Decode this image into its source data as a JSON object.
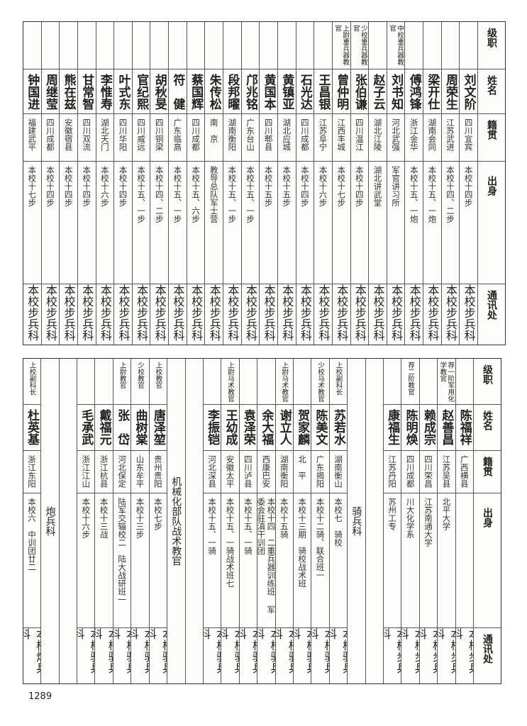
{
  "headers": [
    "级职",
    "姓名",
    "籍贯",
    "出身",
    "通讯处"
  ],
  "upper_table": {
    "rows": [
      {
        "rank": "",
        "name": "刘文阶",
        "place": "四川宜宾",
        "origin": "本校十四步",
        "address": "本校步兵科"
      },
      {
        "rank": "",
        "name": "周荣生",
        "place": "江苏武进",
        "origin": "本校十四、二步",
        "address": "本校步兵科"
      },
      {
        "rank": "",
        "name": "梁开仕",
        "place": "湖南会同",
        "origin": "本校十五、一炮",
        "address": "本校步兵科"
      },
      {
        "rank": "",
        "name": "傅鸿锋",
        "place": "浙江金华",
        "origin": "本校十五、一炮",
        "address": "本校步兵科"
      },
      {
        "rank": "中校重兵器教官",
        "name": "刘书知",
        "place": "河北武强",
        "origin": "军官讲习所",
        "address": "本校步兵科"
      },
      {
        "rank": "",
        "name": "赵子云",
        "place": "湖北江陵",
        "origin": "湖北讲武堂",
        "address": "本校步兵科"
      },
      {
        "rank": "少校重兵器教官",
        "name": "张伯谦",
        "place": "四川温江",
        "origin": "本校十四步",
        "address": "本校步兵科"
      },
      {
        "rank": "上尉重兵器教官",
        "name": "曾仲明",
        "place": "江西丰城",
        "origin": "本校十七步",
        "address": "本校步兵科"
      },
      {
        "rank": "",
        "name": "王昌银",
        "place": "江苏阜宁",
        "origin": "本校十六步",
        "address": "本校步兵科"
      },
      {
        "rank": "",
        "name": "石光达",
        "place": "四川成都",
        "origin": "本校十四步",
        "address": "本校步兵科"
      },
      {
        "rank": "",
        "name": "黄镇亚",
        "place": "湖北应城",
        "origin": "本校十五步",
        "address": "本校步兵科"
      },
      {
        "rank": "",
        "name": "黄国本",
        "place": "四川郫县",
        "origin": "本校十五步",
        "address": "本校步兵科"
      },
      {
        "rank": "",
        "name": "邝兆铭",
        "place": "广东台山",
        "origin": "本校十五、一步",
        "address": "本校步兵科"
      },
      {
        "rank": "",
        "name": "段邦曜",
        "place": "湖南衡阳",
        "origin": "本校十五、一步",
        "address": "本校步兵科"
      },
      {
        "rank": "",
        "name": "朱传松",
        "place": "南　京",
        "origin": "教导总队军士营",
        "address": "本校步兵科"
      },
      {
        "rank": "",
        "name": "蔡国辉",
        "place": "四川成都",
        "origin": "本校十五、六步",
        "address": "本校步兵科"
      },
      {
        "rank": "",
        "name": "符　健",
        "place": "广东临高",
        "origin": "本校十五、一步",
        "address": "本校步兵科"
      },
      {
        "rank": "",
        "name": "胡秋旻",
        "place": "四川铜梁",
        "origin": "本校十四、二步",
        "address": "本校步兵科"
      },
      {
        "rank": "",
        "name": "官纪熙",
        "place": "四川威远",
        "origin": "本校十五、一步",
        "address": "本校步兵科"
      },
      {
        "rank": "",
        "name": "叶式东",
        "place": "四川华阳",
        "origin": "本校十四步",
        "address": "本校步兵科"
      },
      {
        "rank": "",
        "name": "李惟寿",
        "place": "湖北天门",
        "origin": "本校十六步",
        "address": "本校步兵科"
      },
      {
        "rank": "",
        "name": "甘常智",
        "place": "四川双流",
        "origin": "本校十四步",
        "address": "本校步兵科"
      },
      {
        "rank": "",
        "name": "熊在兹",
        "place": "安徽宿县",
        "origin": "本校十四步",
        "address": "本校步兵科"
      },
      {
        "rank": "",
        "name": "周继莹",
        "place": "四川成都",
        "origin": "本校十四步",
        "address": "本校步兵科"
      },
      {
        "rank": "",
        "name": "钟国进",
        "place": "福建武平",
        "origin": "本校十七步",
        "address": "本校步兵科"
      }
    ]
  },
  "lower_table": {
    "rows": [
      {
        "rank": "",
        "name": "陈福祥",
        "place": "广西横县",
        "origin": "",
        "address": "本校步兵科"
      },
      {
        "rank": "荐一阶军用化学教官",
        "name": "赵善昌",
        "place": "江苏吴县",
        "origin": "北平大学",
        "address": "本校步兵科"
      },
      {
        "rank": "",
        "name": "赖成宗",
        "place": "四川荣昌",
        "origin": "江苏南通大学",
        "address": "本校步兵科"
      },
      {
        "rank": "荐二阶教官",
        "name": "陈明焕",
        "place": "四川成都",
        "origin": "川大化学系",
        "address": "本校步兵科"
      },
      {
        "rank": "",
        "name": "康福生",
        "place": "江苏丹阳",
        "origin": "苏州工专",
        "address": "本校步兵科"
      },
      {
        "blank": true
      },
      {
        "section": "骑兵科"
      },
      {
        "rank": "上校副科长",
        "name": "苏若水",
        "place": "湖南衡山",
        "origin": "本校七　骑校",
        "address": "本校骑兵科"
      },
      {
        "rank": "少校马术教官",
        "name": "陈美文",
        "place": "广东揭阳",
        "origin": "本校十二骑、联合班一",
        "address": "本校骑兵科"
      },
      {
        "rank": "",
        "name": "贺家麟",
        "place": "北　平",
        "origin": "本校十三期　骑校战术班",
        "address": "本校骑兵科"
      },
      {
        "rank": "上尉马术教官",
        "name": "谢立人",
        "place": "湖南衡阳",
        "origin": "本校十五骑",
        "address": "本校骑兵科"
      },
      {
        "rank": "",
        "name": "余大福",
        "place": "西康巴安",
        "origin": "本校十四　二重兵器训练班 军委会驻滇干训团",
        "address": "本校骑兵科"
      },
      {
        "rank": "",
        "name": "袁泽荣",
        "place": "四川泸县",
        "origin": "本校十五、一骑",
        "address": "本校骑兵科"
      },
      {
        "rank": "上尉马术教官",
        "name": "王幼成",
        "place": "安徽太平",
        "origin": "本校十五、一骑战术班七",
        "address": "本校骑兵科"
      },
      {
        "rank": "",
        "name": "李振铠",
        "place": "河北深县",
        "origin": "本校十五、一骑",
        "address": "本校骑兵科"
      },
      {
        "blank": true
      },
      {
        "section": "机械化部队战术教官"
      },
      {
        "rank": "上校教官",
        "name": "唐泽堃",
        "place": "贵州贵阳",
        "origin": "本校七步",
        "address": "本校骑兵科"
      },
      {
        "rank": "少校教官",
        "name": "曲树棠",
        "place": "山东牟平",
        "origin": "本校十三步",
        "address": "本校骑兵科"
      },
      {
        "rank": "上尉教官",
        "name": "张　岱",
        "place": "河北保定",
        "origin": "陆军交辎校二　陆大战研班一",
        "address": "本校骑兵科"
      },
      {
        "rank": "",
        "name": "戴福元",
        "place": "浙江杭县",
        "origin": "本校十三战",
        "address": "本校骑兵科"
      },
      {
        "rank": "",
        "name": "毛承武",
        "place": "浙江江山",
        "origin": "本校十六步",
        "address": "本校骑兵科"
      },
      {
        "blank": true
      },
      {
        "section": "炮兵科"
      },
      {
        "rank": "上校副科长",
        "name": "杜英基",
        "place": "浙江东阳",
        "origin": "本校六　中训团廿二",
        "address": "本校炮兵科"
      }
    ]
  },
  "page_number": "1289"
}
